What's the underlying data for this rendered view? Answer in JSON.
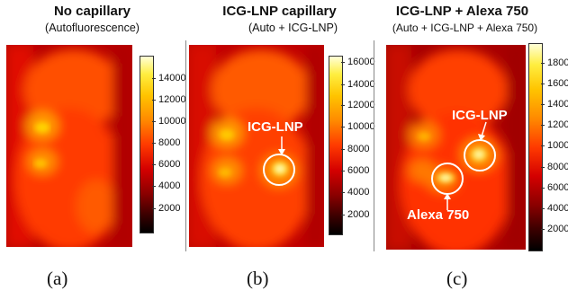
{
  "panels": [
    {
      "title": "No capillary",
      "subtitle": "(Autofluorescence)",
      "label": "(a)",
      "colorbar_ticks": [
        "14000",
        "12000",
        "10000",
        "8000",
        "6000",
        "4000",
        "2000"
      ],
      "annotations": []
    },
    {
      "title": "ICG-LNP capillary",
      "subtitle": "(Auto + ICG-LNP)",
      "label": "(b)",
      "colorbar_ticks": [
        "16000",
        "14000",
        "12000",
        "10000",
        "8000",
        "6000",
        "4000",
        "2000"
      ],
      "annotations": [
        "ICG-LNP"
      ]
    },
    {
      "title": "ICG-LNP + Alexa 750",
      "subtitle": "(Auto + ICG-LNP + Alexa 750)",
      "label": "(c)",
      "colorbar_ticks": [
        "18000",
        "16000",
        "14000",
        "12000",
        "10000",
        "8000",
        "6000",
        "4000",
        "2000"
      ],
      "annotations": [
        "ICG-LNP",
        "Alexa 750"
      ]
    }
  ],
  "colormap": [
    "#000000",
    "#8a0000",
    "#ff3a00",
    "#ffc400",
    "#ffffd8"
  ],
  "marker_color": "#ffffff"
}
